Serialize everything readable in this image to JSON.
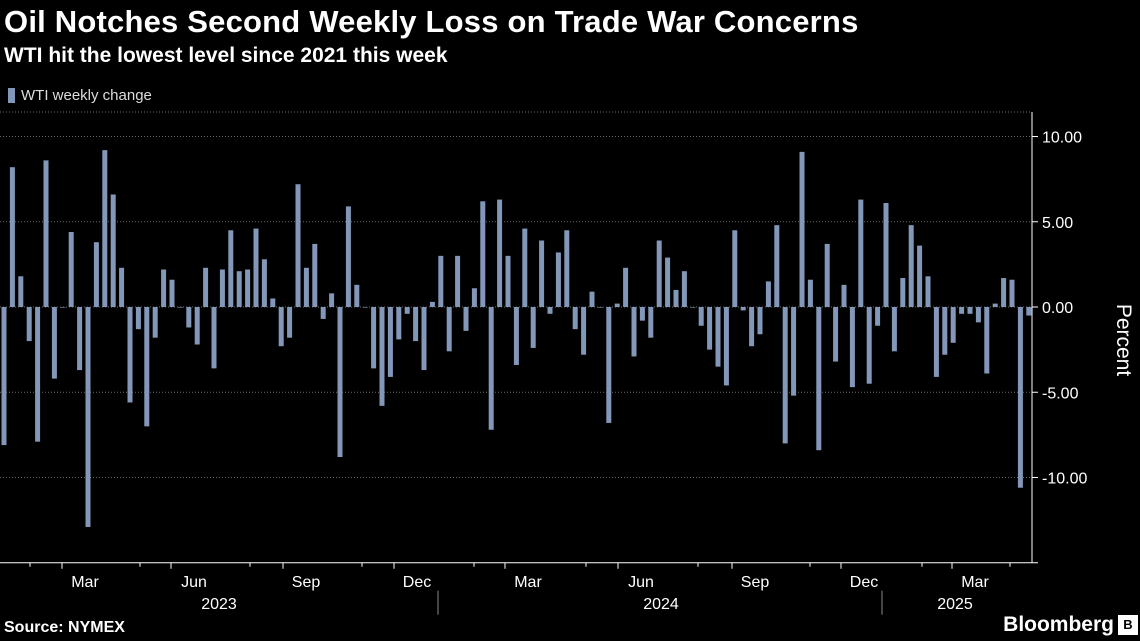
{
  "header": {
    "title": "Oil Notches Second Weekly Loss on Trade War Concerns",
    "subtitle": "WTI hit the lowest level since 2021 this week"
  },
  "footer": {
    "source": "Source: NYMEX",
    "brand": "Bloomberg"
  },
  "colors": {
    "bar": "#8397b9",
    "grid": "#6b6b6b",
    "background": "#000000"
  },
  "chart_data": {
    "type": "bar",
    "title": "Oil Notches Second Weekly Loss on Trade War Concerns",
    "subtitle": "WTI hit the lowest level since 2021 this week",
    "ylabel": "Percent",
    "ylim": [
      -15,
      11
    ],
    "yticks": [
      10,
      5,
      0,
      -5,
      -10
    ],
    "ytick_labels": [
      "10.00",
      "5.00",
      "0.00",
      "-5.00",
      "-10.00"
    ],
    "month_ticks": [
      "Mar",
      "Jun",
      "Sep",
      "Dec",
      "Mar",
      "Jun",
      "Sep",
      "Dec",
      "Mar"
    ],
    "year_labels": [
      "2023",
      "2024",
      "2025"
    ],
    "legend_position": "top-left",
    "grid": "dotted horizontal",
    "series": [
      {
        "name": "WTI weekly change",
        "values": [
          -8.1,
          8.2,
          1.8,
          -2.0,
          -7.9,
          8.6,
          -4.2,
          0.0,
          4.4,
          -3.7,
          -12.9,
          3.8,
          9.2,
          6.6,
          2.3,
          -5.6,
          -1.3,
          -7.0,
          -1.8,
          2.2,
          1.6,
          0.0,
          -1.2,
          -2.2,
          2.3,
          -3.6,
          2.2,
          4.5,
          2.1,
          2.2,
          4.6,
          2.8,
          0.5,
          -2.3,
          -1.8,
          7.2,
          2.3,
          3.7,
          -0.7,
          0.8,
          -8.8,
          5.9,
          1.3,
          0.0,
          -3.6,
          -5.8,
          -4.1,
          -1.9,
          -0.4,
          -2.0,
          -3.7,
          0.3,
          3.0,
          -2.6,
          3.0,
          -1.4,
          1.1,
          6.2,
          -7.2,
          6.3,
          3.0,
          -3.4,
          4.6,
          -2.4,
          3.9,
          -0.4,
          3.2,
          4.5,
          -1.3,
          -2.8,
          0.9,
          0.0,
          -6.8,
          0.2,
          2.3,
          -2.9,
          -0.8,
          -1.8,
          3.9,
          2.9,
          1.0,
          2.1,
          0.0,
          -1.1,
          -2.5,
          -3.5,
          -4.6,
          4.5,
          -0.2,
          -2.3,
          -1.6,
          1.5,
          4.8,
          -8.0,
          -5.2,
          9.1,
          1.6,
          -8.4,
          3.7,
          -3.2,
          1.3,
          -4.7,
          6.3,
          -4.5,
          -1.1,
          6.1,
          -2.6,
          1.7,
          4.8,
          3.6,
          1.8,
          -4.1,
          -2.8,
          -2.1,
          -0.4,
          -0.4,
          -0.9,
          -3.9,
          0.2,
          1.7,
          1.6,
          -10.6,
          -0.5
        ]
      }
    ]
  }
}
